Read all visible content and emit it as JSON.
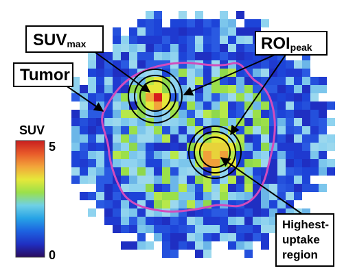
{
  "labels": {
    "suv_max_main": "SUV",
    "suv_max_sub": "max",
    "roi_peak_main": "ROI",
    "roi_peak_sub": "peak",
    "tumor": "Tumor",
    "highest_uptake_line1": "Highest-",
    "highest_uptake_line2": "uptake",
    "highest_uptake_line3": "region"
  },
  "colorbar": {
    "title": "SUV",
    "max_label": "5",
    "min_label": "0",
    "stops": [
      "#2a0a5e",
      "#1f2fc2",
      "#1d62e0",
      "#27a3e6",
      "#6fd0e6",
      "#9be04a",
      "#e6e83a",
      "#f2a43a",
      "#e85a2a",
      "#c81e1e"
    ]
  },
  "colors": {
    "tumor_contour": "#d24bbd",
    "roi_circle": "#000000",
    "background_pixel": "#1f44d6",
    "hotspot_max": "#d61c1c"
  }
}
